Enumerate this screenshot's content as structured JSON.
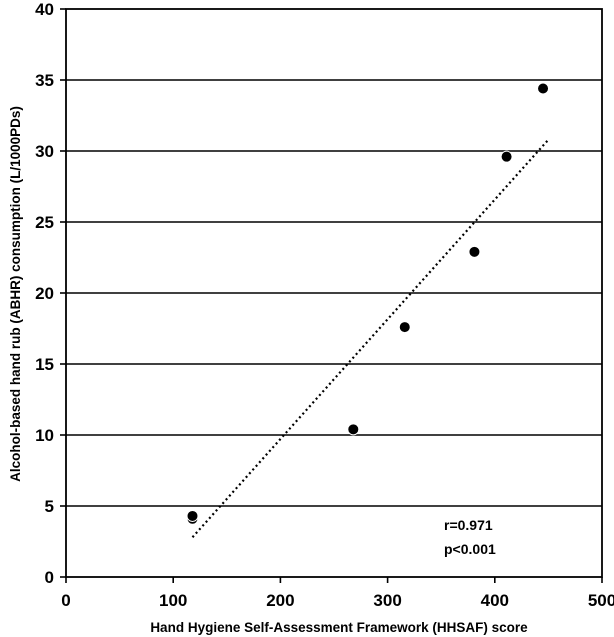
{
  "chart_data": {
    "type": "scatter",
    "xlabel": "Hand Hygiene Self-Assessment Framework (HHSAF) score",
    "ylabel": "Alcohol-based hand rub (ABHR) consumption (L/1000PDs)",
    "xlim": [
      0,
      500
    ],
    "ylim": [
      0,
      40
    ],
    "xticks": [
      0,
      100,
      200,
      300,
      400,
      500
    ],
    "yticks": [
      0,
      5,
      10,
      15,
      20,
      25,
      30,
      35,
      40
    ],
    "grid": "horizontal",
    "points": [
      {
        "x": 118,
        "y": 4.1
      },
      {
        "x": 118,
        "y": 4.3
      },
      {
        "x": 268,
        "y": 10.4
      },
      {
        "x": 316,
        "y": 17.6
      },
      {
        "x": 381,
        "y": 22.9
      },
      {
        "x": 411,
        "y": 29.6
      },
      {
        "x": 445,
        "y": 34.4
      }
    ],
    "trendline": {
      "style": "dotted",
      "x": [
        118,
        450
      ],
      "y": [
        2.8,
        30.8
      ]
    },
    "annotations": [
      "r=0.971",
      "p<0.001"
    ]
  }
}
